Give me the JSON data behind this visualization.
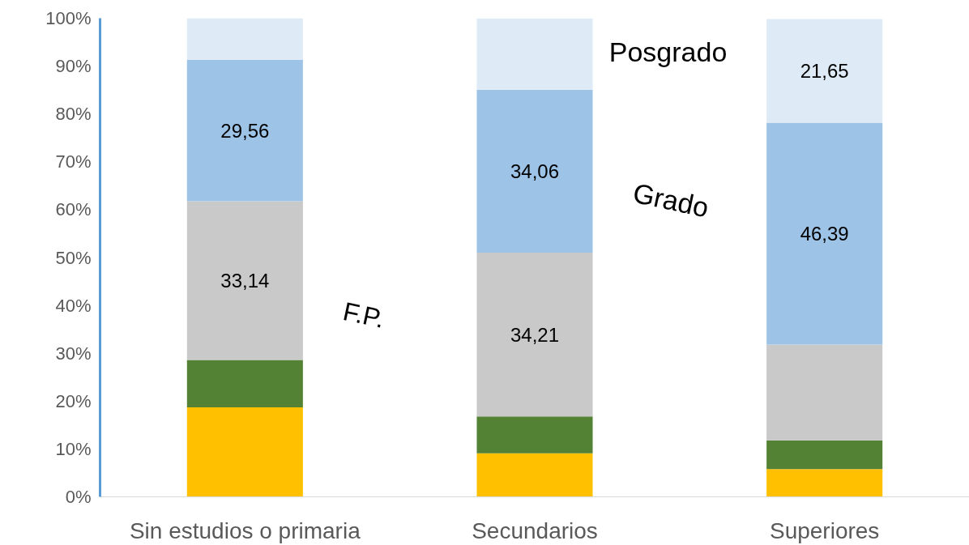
{
  "chart_data": {
    "type": "bar",
    "stacked": true,
    "categories": [
      "Sin estudios o primaria",
      "Secundarios",
      "Superiores"
    ],
    "series": [
      {
        "color": "#ffc000",
        "values": [
          18.7,
          9.1,
          5.8
        ]
      },
      {
        "color": "#548235",
        "values": [
          9.9,
          7.7,
          6.0
        ]
      },
      {
        "name": "F.P.",
        "color": "#c9c9c9",
        "values": [
          33.14,
          34.21,
          20.0
        ],
        "value_labels": [
          "33,14",
          "34,21",
          null
        ]
      },
      {
        "name": "Grado",
        "color": "#9dc3e6",
        "values": [
          29.56,
          34.06,
          46.39
        ],
        "value_labels": [
          "29,56",
          "34,06",
          "46,39"
        ]
      },
      {
        "name": "Posgrado",
        "color": "#deebf7",
        "values": [
          8.7,
          14.9,
          21.65
        ],
        "value_labels": [
          null,
          null,
          "21,65"
        ]
      }
    ],
    "ylim": [
      0,
      100
    ],
    "yticks": [
      {
        "value": 0,
        "label": "0%"
      },
      {
        "value": 10,
        "label": "10%"
      },
      {
        "value": 20,
        "label": "20%"
      },
      {
        "value": 30,
        "label": "30%"
      },
      {
        "value": 40,
        "label": "40%"
      },
      {
        "value": 50,
        "label": "50%"
      },
      {
        "value": 60,
        "label": "60%"
      },
      {
        "value": 70,
        "label": "70%"
      },
      {
        "value": 80,
        "label": "80%"
      },
      {
        "value": 90,
        "label": "90%"
      },
      {
        "value": 100,
        "label": "100%"
      }
    ],
    "grid": false
  }
}
